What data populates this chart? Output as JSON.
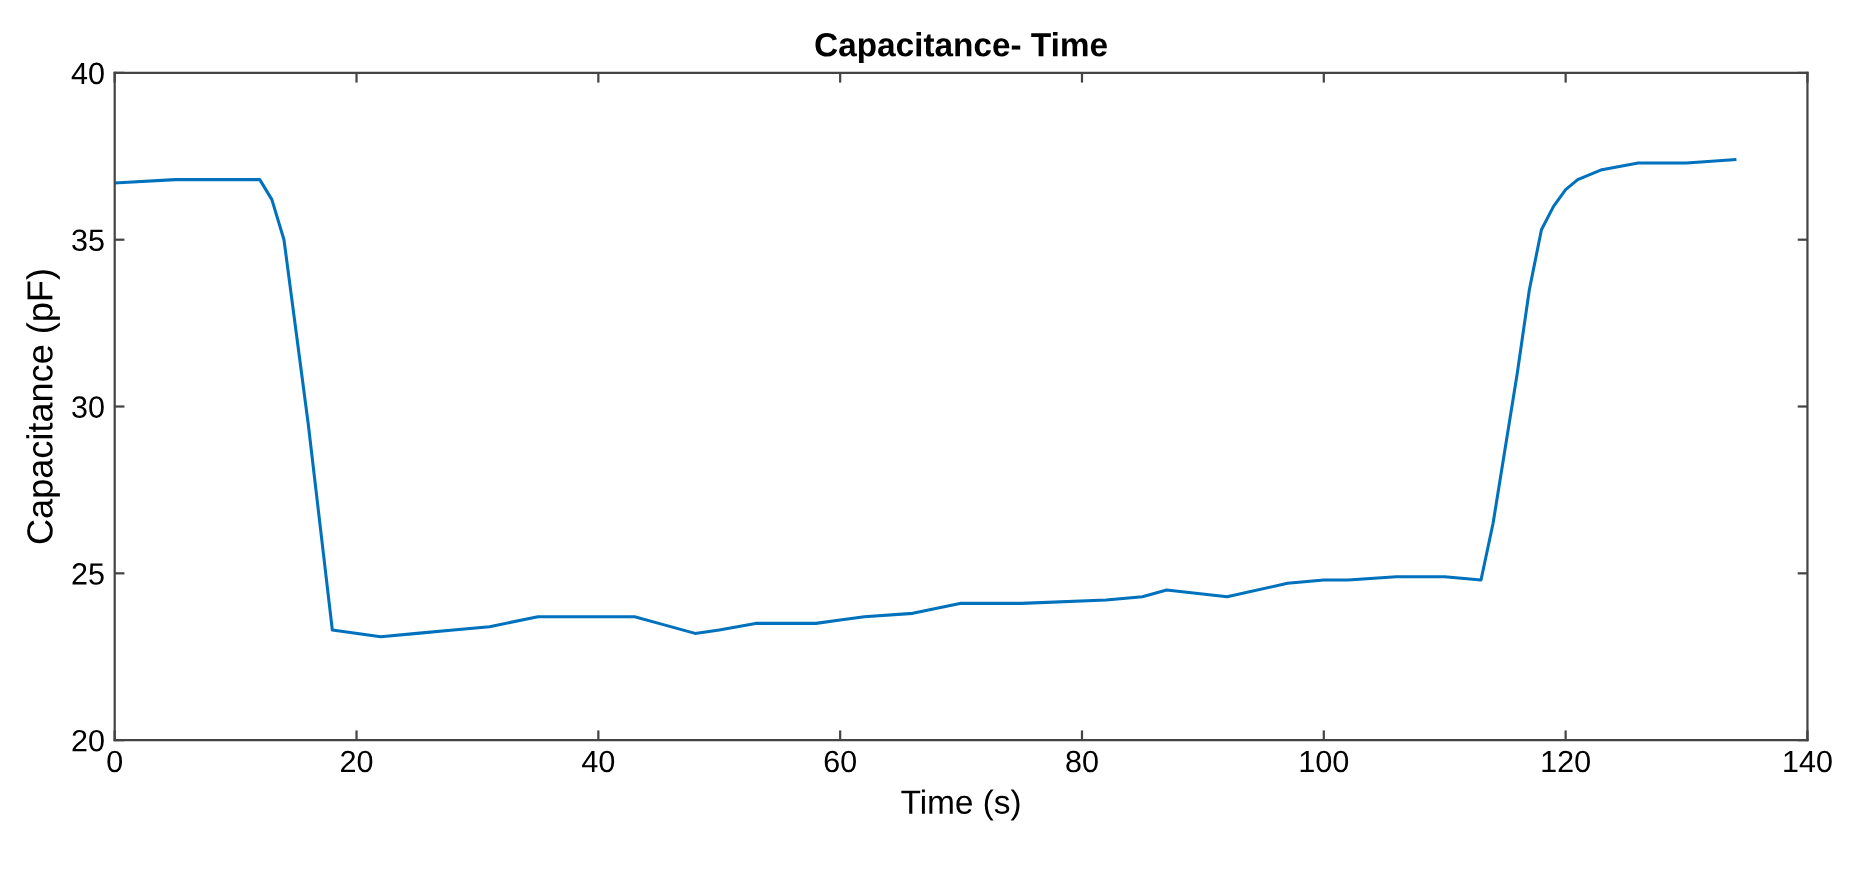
{
  "chart_data": {
    "type": "line",
    "title": "Capacitance- Time",
    "xlabel": "Time (s)",
    "ylabel": "Capacitance (pF)",
    "xlim": [
      0,
      140
    ],
    "xticks": [
      0,
      20,
      40,
      60,
      80,
      100,
      120,
      140
    ],
    "ylim": [
      20,
      40
    ],
    "yticks": [
      20,
      25,
      30,
      35,
      40
    ],
    "grid": false,
    "legend": false,
    "series": [
      {
        "color": "#0072bd",
        "x": [
          0,
          5,
          12,
          13,
          14,
          16,
          18,
          22,
          25,
          28,
          31,
          35,
          38,
          43,
          45,
          48,
          50,
          53,
          58,
          60,
          62,
          66,
          70,
          75,
          82,
          85,
          87,
          92,
          97,
          100,
          102,
          106,
          110,
          113,
          114,
          116,
          117,
          118,
          119,
          120,
          121,
          123,
          126,
          130,
          134
        ],
        "values": [
          36.7,
          36.8,
          36.8,
          36.2,
          35.0,
          29.5,
          23.3,
          23.1,
          23.2,
          23.3,
          23.4,
          23.7,
          23.7,
          23.7,
          23.5,
          23.2,
          23.3,
          23.5,
          23.5,
          23.6,
          23.7,
          23.8,
          24.1,
          24.1,
          24.2,
          24.3,
          24.5,
          24.3,
          24.7,
          24.8,
          24.8,
          24.9,
          24.9,
          24.8,
          26.5,
          31.0,
          33.5,
          35.3,
          36.0,
          36.5,
          36.8,
          37.1,
          37.3,
          37.3,
          37.4
        ]
      }
    ]
  }
}
